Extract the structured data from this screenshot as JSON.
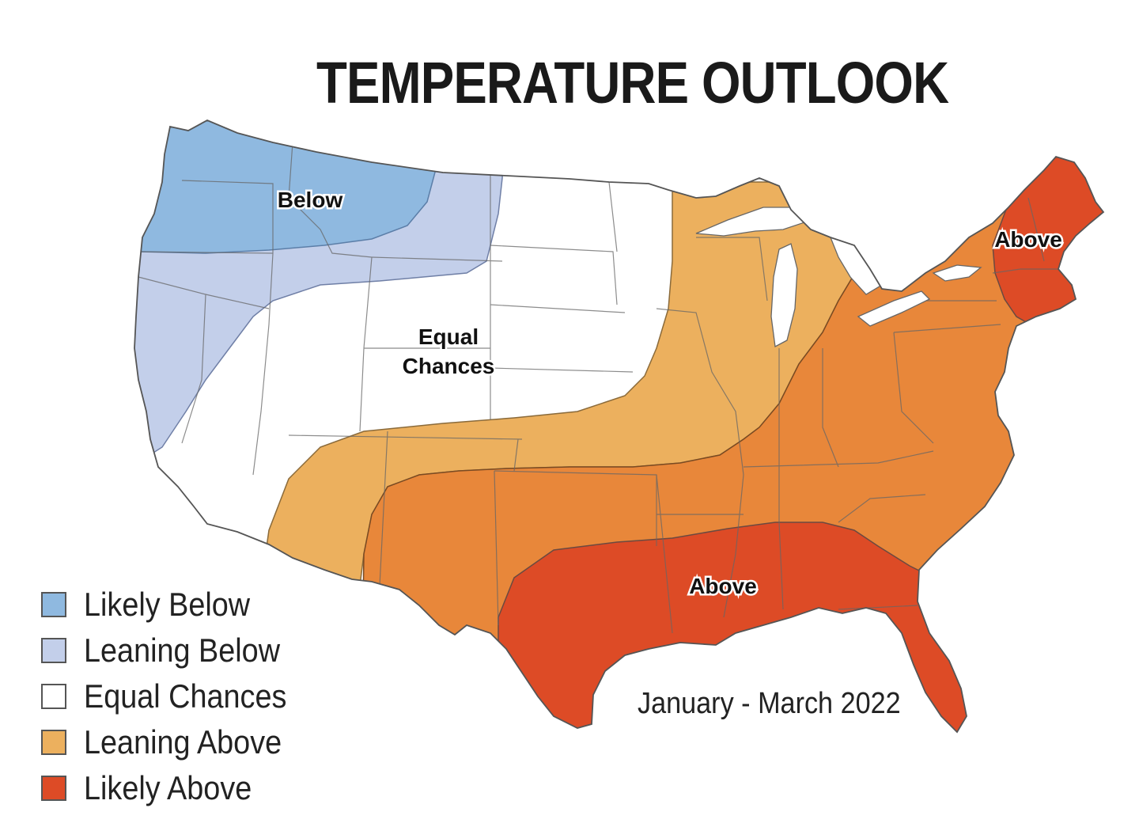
{
  "title": "TEMPERATURE OUTLOOK",
  "period": "January - March 2022",
  "colors": {
    "likely_below": "#8fb9e0",
    "leaning_below": "#c3cfea",
    "equal_chances": "#ffffff",
    "leaning_above": "#ecb05e",
    "moderate_above": "#e8873a",
    "likely_above": "#dd4b26",
    "border": "#555555",
    "water": "#ffffff"
  },
  "legend": [
    {
      "label": "Likely Below",
      "color": "#8fb9e0"
    },
    {
      "label": "Leaning Below",
      "color": "#c3cfea"
    },
    {
      "label": "Equal Chances",
      "color": "#ffffff"
    },
    {
      "label": "Leaning Above",
      "color": "#ecb05e"
    },
    {
      "label": "Likely Above",
      "color": "#dd4b26"
    }
  ],
  "map_labels": {
    "northwest": "Below",
    "central_line1": "Equal",
    "central_line2": "Chances",
    "northeast": "Above",
    "southeast": "Above"
  }
}
